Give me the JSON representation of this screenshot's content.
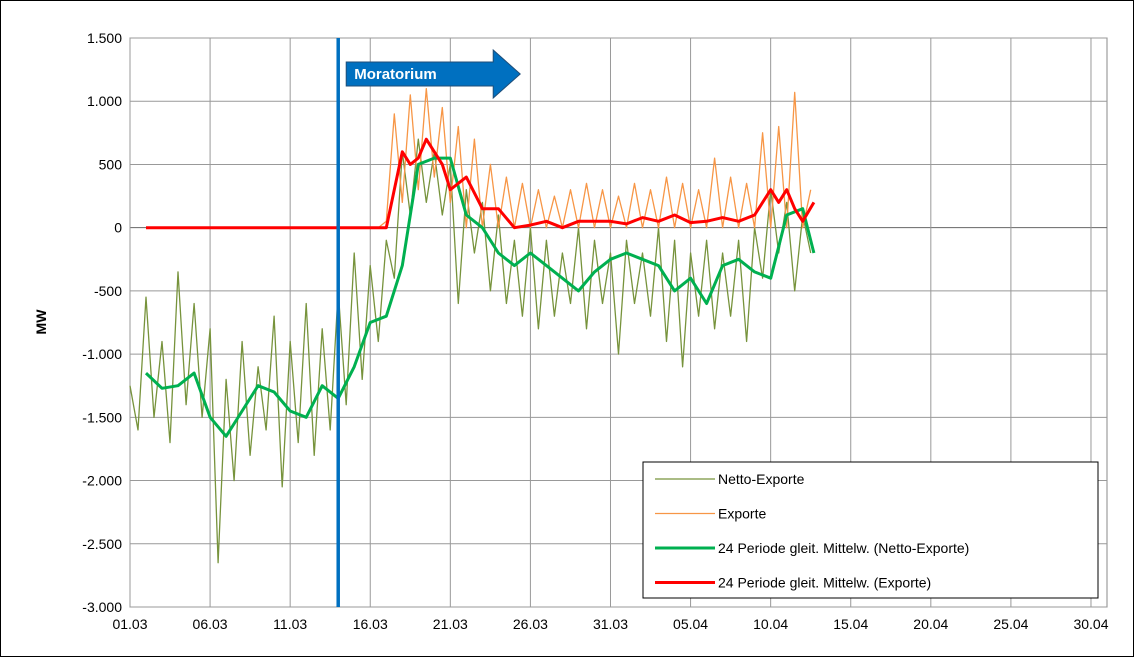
{
  "chart_data": {
    "type": "line",
    "y_label": "MW",
    "xlim": [
      0,
      61
    ],
    "xticks": [
      {
        "value": 0,
        "label": "01.03"
      },
      {
        "value": 5,
        "label": "06.03"
      },
      {
        "value": 10,
        "label": "11.03"
      },
      {
        "value": 15,
        "label": "16.03"
      },
      {
        "value": 20,
        "label": "21.03"
      },
      {
        "value": 25,
        "label": "26.03"
      },
      {
        "value": 30,
        "label": "31.03"
      },
      {
        "value": 35,
        "label": "05.04"
      },
      {
        "value": 40,
        "label": "10.04"
      },
      {
        "value": 45,
        "label": "15.04"
      },
      {
        "value": 50,
        "label": "20.04"
      },
      {
        "value": 55,
        "label": "25.04"
      },
      {
        "value": 60,
        "label": "30.04"
      }
    ],
    "ylim": [
      -3000,
      1500
    ],
    "yticks": [
      {
        "value": -3000,
        "label": "-3.000"
      },
      {
        "value": -2500,
        "label": "-2.500"
      },
      {
        "value": -2000,
        "label": "-2.000"
      },
      {
        "value": -1500,
        "label": "-1.500"
      },
      {
        "value": -1000,
        "label": "-1.000"
      },
      -500,
      0,
      500,
      {
        "value": 1000,
        "label": "1.000"
      },
      {
        "value": 1500,
        "label": "1.500"
      }
    ],
    "grid": true,
    "legend": "lower right",
    "annotations": [
      {
        "text": "Moratorium",
        "x": 13
      }
    ],
    "series": [
      {
        "name": "Netto-Exporte",
        "color": "#77933c",
        "width": 1.3,
        "x": [
          0,
          0.5,
          1,
          1.5,
          2,
          2.5,
          3,
          3.5,
          4,
          4.5,
          5,
          5.5,
          6,
          6.5,
          7,
          7.5,
          8,
          8.5,
          9,
          9.5,
          10,
          10.5,
          11,
          11.5,
          12,
          12.5,
          13,
          13.5,
          14,
          14.5,
          15,
          15.5,
          16,
          16.5,
          17,
          17.5,
          18,
          18.5,
          19,
          19.5,
          20,
          20.5,
          21,
          21.5,
          22,
          22.5,
          23,
          23.5,
          24,
          24.5,
          25,
          25.5,
          26,
          26.5,
          27,
          27.5,
          28,
          28.5,
          29,
          29.5,
          30,
          30.5,
          31,
          31.5,
          32,
          32.5,
          33,
          33.5,
          34,
          34.5,
          35,
          35.5,
          36,
          36.5,
          37,
          37.5,
          38,
          38.5,
          39,
          39.5,
          40,
          40.5,
          41,
          41.5,
          42,
          42.5
        ],
        "values": [
          -1250,
          -1600,
          -550,
          -1500,
          -900,
          -1700,
          -350,
          -1400,
          -600,
          -1500,
          -800,
          -2650,
          -1200,
          -2000,
          -900,
          -1800,
          -1100,
          -1600,
          -700,
          -2050,
          -900,
          -1700,
          -600,
          -1800,
          -800,
          -1600,
          -500,
          -1400,
          -200,
          -1200,
          -300,
          -900,
          -100,
          -400,
          600,
          100,
          700,
          200,
          600,
          100,
          500,
          -600,
          300,
          -200,
          200,
          -500,
          100,
          -600,
          -100,
          -700,
          0,
          -800,
          -100,
          -700,
          -200,
          -600,
          0,
          -800,
          -100,
          -600,
          -200,
          -1000,
          -100,
          -600,
          -200,
          -700,
          0,
          -900,
          -100,
          -1100,
          -200,
          -700,
          -100,
          -800,
          -200,
          -700,
          -100,
          -900,
          0,
          -400,
          300,
          -200,
          200,
          -500,
          100,
          -200
        ]
      },
      {
        "name": "Exporte",
        "color": "#f79646",
        "width": 1.3,
        "x": [
          1,
          15.5,
          16,
          16.5,
          17,
          17.5,
          18,
          18.5,
          19,
          19.5,
          20,
          20.5,
          21,
          21.5,
          22,
          22.5,
          23,
          23.5,
          24,
          24.5,
          25,
          25.5,
          26,
          26.5,
          27,
          27.5,
          28,
          28.5,
          29,
          29.5,
          30,
          30.5,
          31,
          31.5,
          32,
          32.5,
          33,
          33.5,
          34,
          34.5,
          35,
          35.5,
          36,
          36.5,
          37,
          37.5,
          38,
          38.5,
          39,
          39.5,
          40,
          40.5,
          41,
          41.5,
          42,
          42.5
        ],
        "values": [
          0,
          0,
          50,
          900,
          200,
          1050,
          300,
          1100,
          400,
          950,
          200,
          800,
          0,
          700,
          0,
          500,
          0,
          400,
          0,
          350,
          0,
          300,
          0,
          250,
          0,
          300,
          0,
          350,
          0,
          300,
          0,
          250,
          0,
          350,
          0,
          300,
          0,
          400,
          0,
          350,
          0,
          300,
          0,
          550,
          0,
          400,
          0,
          350,
          0,
          750,
          0,
          800,
          0,
          1070,
          0,
          300
        ]
      },
      {
        "name": "24 Periode gleit. Mittelw. (Netto-Exporte)",
        "color": "#00b050",
        "width": 3,
        "x": [
          1,
          2,
          3,
          4,
          5,
          6,
          7,
          8,
          9,
          10,
          11,
          12,
          13,
          14,
          15,
          16,
          17,
          18,
          19,
          20,
          21,
          22,
          23,
          24,
          25,
          26,
          27,
          28,
          29,
          30,
          31,
          32,
          33,
          34,
          35,
          36,
          37,
          38,
          39,
          40,
          41,
          42,
          42.7
        ],
        "values": [
          -1150,
          -1270,
          -1250,
          -1150,
          -1500,
          -1650,
          -1450,
          -1250,
          -1300,
          -1450,
          -1500,
          -1250,
          -1350,
          -1100,
          -750,
          -700,
          -300,
          500,
          550,
          550,
          100,
          0,
          -200,
          -300,
          -200,
          -300,
          -400,
          -500,
          -350,
          -250,
          -200,
          -250,
          -300,
          -500,
          -400,
          -600,
          -300,
          -250,
          -350,
          -400,
          100,
          150,
          -200
        ]
      },
      {
        "name": "24 Periode gleit. Mittelw. (Exporte)",
        "color": "#ff0000",
        "width": 3,
        "x": [
          1,
          15.5,
          16,
          16.5,
          17,
          17.5,
          18,
          18.5,
          19,
          19.5,
          20,
          21,
          22,
          23,
          24,
          25,
          26,
          27,
          28,
          29,
          30,
          31,
          32,
          33,
          34,
          35,
          36,
          37,
          38,
          39,
          40,
          40.5,
          41,
          41.5,
          42,
          42.7
        ],
        "values": [
          0,
          0,
          0,
          300,
          600,
          500,
          550,
          700,
          600,
          500,
          300,
          400,
          150,
          150,
          0,
          20,
          50,
          0,
          50,
          50,
          50,
          30,
          80,
          50,
          100,
          40,
          50,
          80,
          50,
          100,
          300,
          200,
          300,
          150,
          50,
          200
        ]
      }
    ]
  }
}
